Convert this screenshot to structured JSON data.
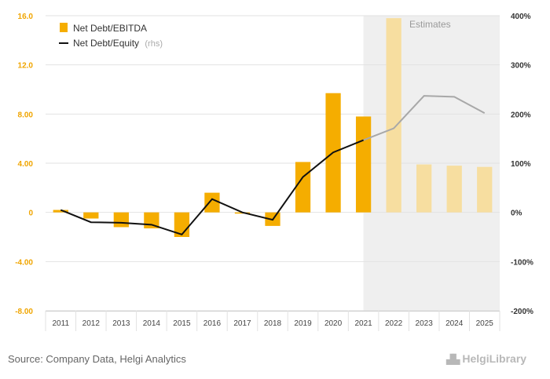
{
  "chart_data": {
    "type": "bar",
    "categories": [
      "2011",
      "2012",
      "2013",
      "2014",
      "2015",
      "2016",
      "2017",
      "2018",
      "2019",
      "2020",
      "2021",
      "2022",
      "2023",
      "2024",
      "2025"
    ],
    "series": [
      {
        "name": "Net Debt/EBITDA",
        "axis": "left",
        "kind": "bar",
        "color": "#f5ad00",
        "values": [
          0.2,
          -0.5,
          -1.2,
          -1.3,
          -2.0,
          1.6,
          -0.1,
          -1.1,
          4.1,
          9.7,
          7.8,
          15.8,
          3.9,
          3.8,
          3.7
        ]
      },
      {
        "name": "Net Debt/Equity",
        "name_suffix": "(rhs)",
        "axis": "right",
        "kind": "line",
        "color": "#111111",
        "values": [
          0.05,
          -0.2,
          -0.21,
          -0.25,
          -0.45,
          0.27,
          0.0,
          -0.15,
          0.72,
          1.22,
          1.47,
          1.71,
          2.37,
          2.35,
          2.02
        ]
      }
    ],
    "estimate_start_index": 11,
    "estimate_label": "Estimates",
    "estimate_bar_color": "#f7dea0",
    "estimate_line_color": "#a8a8a8",
    "estimate_shade_color": "#efefef",
    "ylim": [
      -8,
      16
    ],
    "y_ticks": [
      "16.0",
      "12.0",
      "8.00",
      "4.00",
      "0",
      "-4.00",
      "-8.00"
    ],
    "y_tick_values": [
      16,
      12,
      8,
      4,
      0,
      -4,
      -8
    ],
    "y2lim": [
      -2,
      4
    ],
    "y2_ticks": [
      "400%",
      "300%",
      "200%",
      "100%",
      "0%",
      "-100%",
      "-200%"
    ],
    "y2_tick_values": [
      4,
      3,
      2,
      1,
      0,
      -1,
      -2
    ],
    "grid": true,
    "legend_position": "top-left"
  },
  "footer": {
    "source": "Source: Company Data, Helgi Analytics",
    "logo": "HelgiLibrary"
  }
}
